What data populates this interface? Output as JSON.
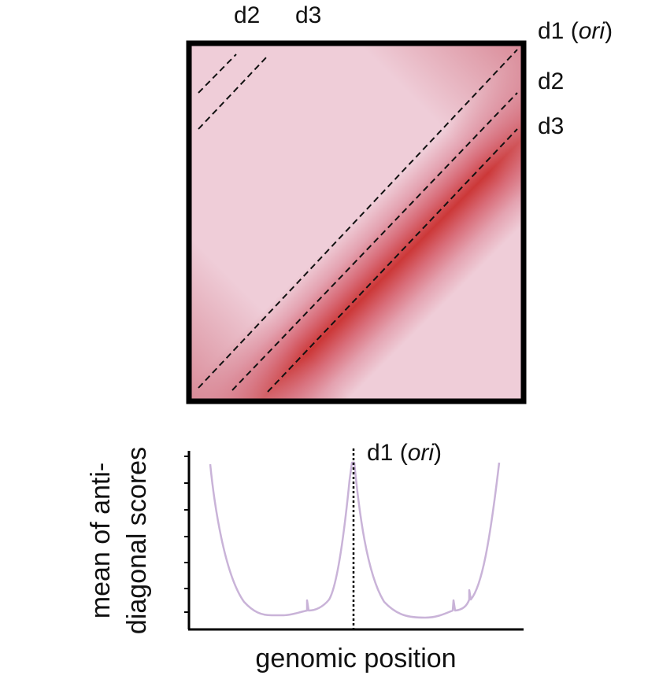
{
  "heatmap": {
    "top_labels": [
      "d2",
      "d3"
    ],
    "right_labels": [
      {
        "text": "d1 ",
        "italic": "ori",
        "suffix": ""
      },
      {
        "text": "d2",
        "italic": "",
        "suffix": ""
      },
      {
        "text": "d3",
        "italic": "",
        "suffix": ""
      }
    ]
  },
  "plot": {
    "peak_label": {
      "text": "d1 (",
      "italic": "ori",
      "suffix": ")"
    },
    "xlabel": "genomic position",
    "ylabel_line1": "mean of anti-",
    "ylabel_line2": "diagonal scores",
    "line_color": "#c9b3d8"
  }
}
